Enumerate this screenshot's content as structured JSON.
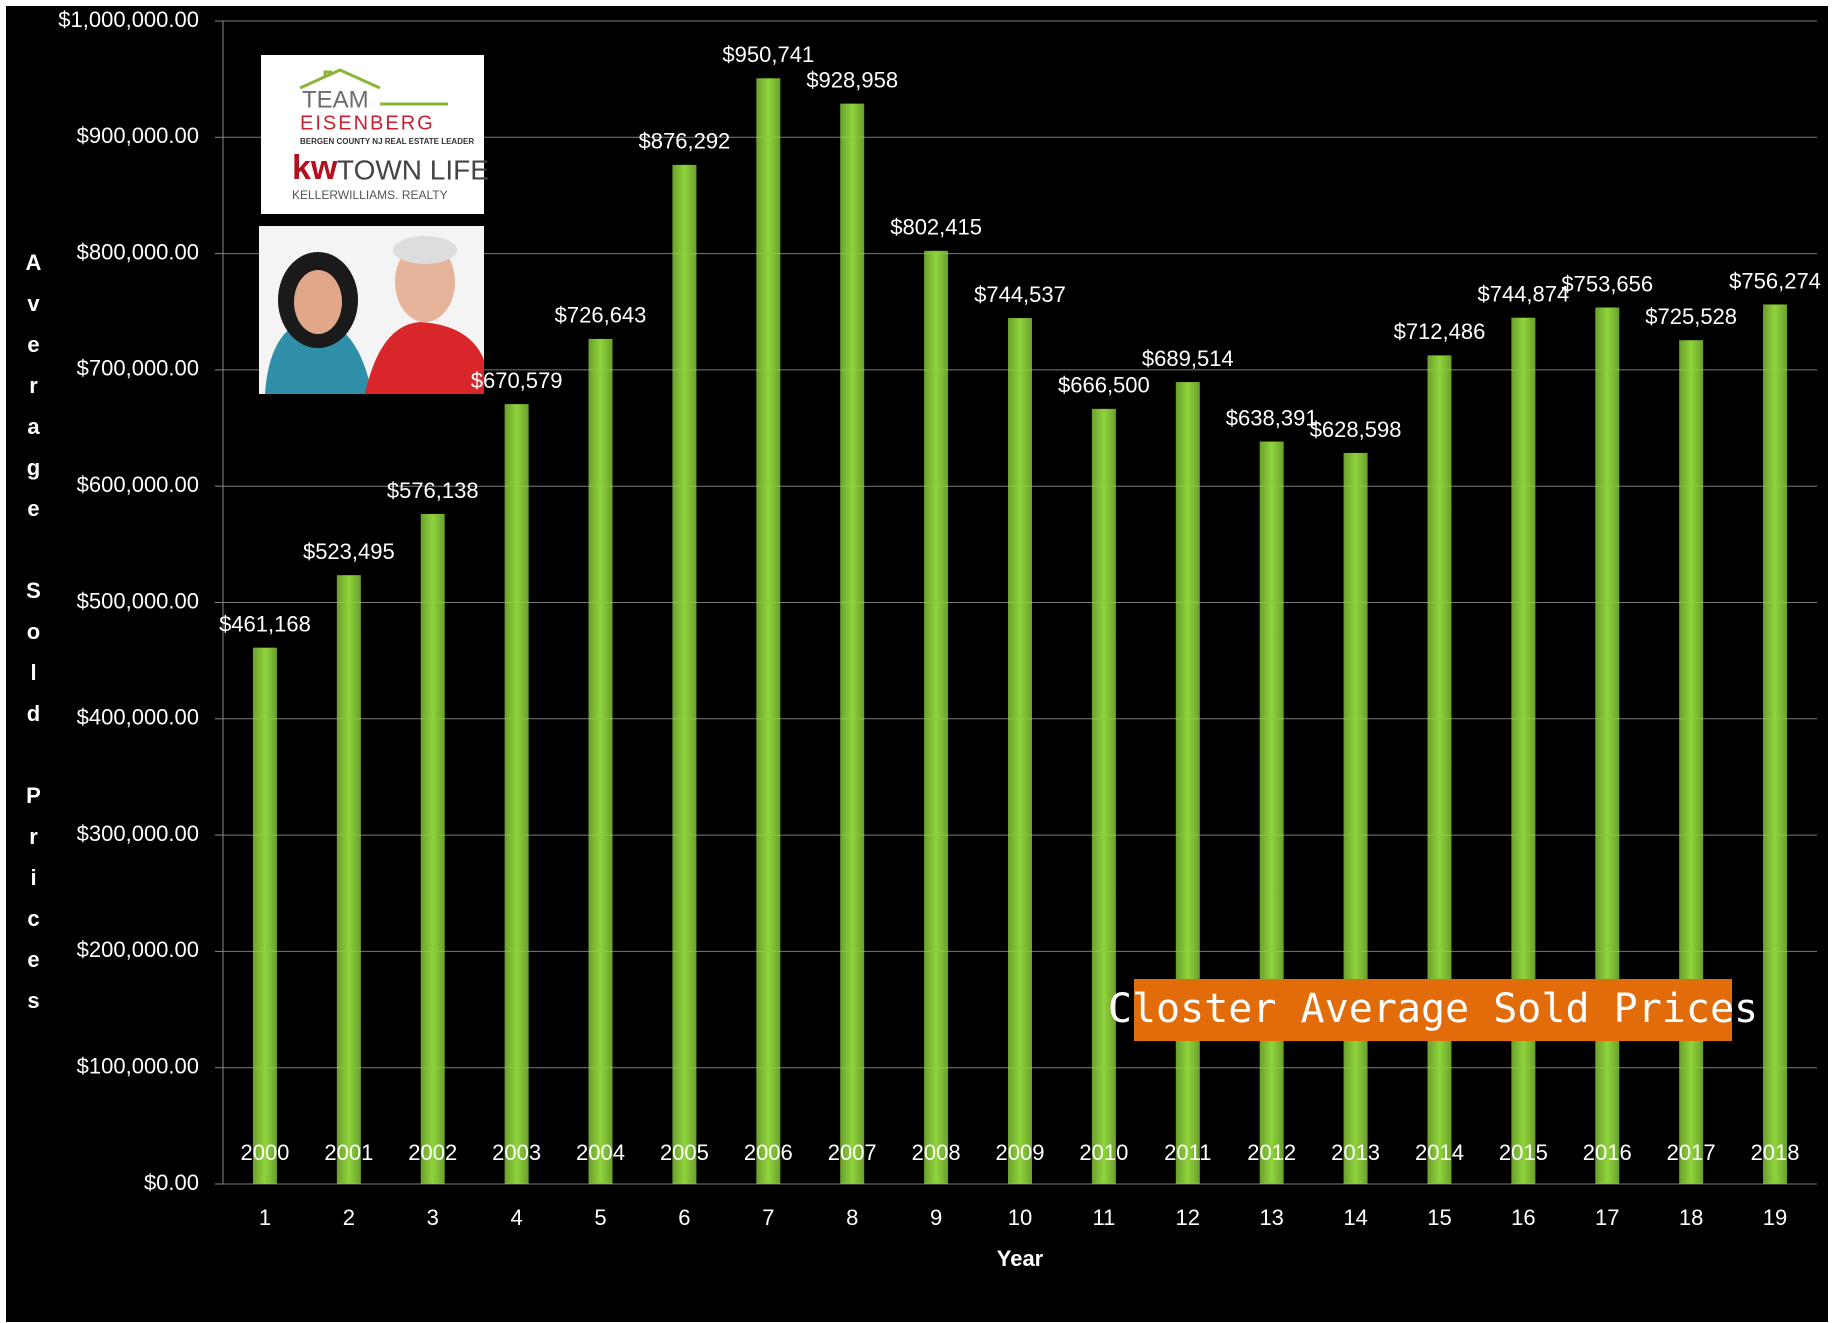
{
  "chart_data": {
    "type": "bar",
    "title": "Closter Average Sold Prices",
    "x_label": "Year",
    "y_label": "Average Sold Prices",
    "categories": [
      "1",
      "2",
      "3",
      "4",
      "5",
      "6",
      "7",
      "8",
      "9",
      "10",
      "11",
      "12",
      "13",
      "14",
      "15",
      "16",
      "17",
      "18",
      "19"
    ],
    "year_labels": [
      "2000",
      "2001",
      "2002",
      "2003",
      "2004",
      "2005",
      "2006",
      "2007",
      "2008",
      "2009",
      "2010",
      "2011",
      "2012",
      "2013",
      "2014",
      "2015",
      "2016",
      "2017",
      "2018"
    ],
    "values": [
      461168,
      523495,
      576138,
      670579,
      726643,
      876292,
      950741,
      928958,
      802415,
      744537,
      666500,
      689514,
      638391,
      628598,
      712486,
      744874,
      753656,
      725528,
      756274
    ],
    "value_labels": [
      "$461,168",
      "$523,495",
      "$576,138",
      "$670,579",
      "$726,643",
      "$876,292",
      "$950,741",
      "$928,958",
      "$802,415",
      "$744,537",
      "$666,500",
      "$689,514",
      "$638,391",
      "$628,598",
      "$712,486",
      "$744,874",
      "$753,656",
      "$725,528",
      "$756,274"
    ],
    "color": "#8fd43c",
    "ylim": [
      0,
      1000000
    ],
    "yticks": [
      {
        "value": 0,
        "label": "$0.00"
      },
      {
        "value": 100000,
        "label": "$100,000.00"
      },
      {
        "value": 200000,
        "label": "$200,000.00"
      },
      {
        "value": 300000,
        "label": "$300,000.00"
      },
      {
        "value": 400000,
        "label": "$400,000.00"
      },
      {
        "value": 500000,
        "label": "$500,000.00"
      },
      {
        "value": 600000,
        "label": "$600,000.00"
      },
      {
        "value": 700000,
        "label": "$700,000.00"
      },
      {
        "value": 800000,
        "label": "$800,000.00"
      },
      {
        "value": 900000,
        "label": "$900,000.00"
      },
      {
        "value": 1000000,
        "label": "$1,000,000.00"
      }
    ],
    "grid": true,
    "logo": {
      "team": "TEAM",
      "name": "EISENBERG",
      "tagline": "BERGEN COUNTY NJ REAL ESTATE LEADER",
      "brand": "kw",
      "office": "TOWN LIFE",
      "company": "KELLERWILLIAMS. REALTY"
    }
  }
}
